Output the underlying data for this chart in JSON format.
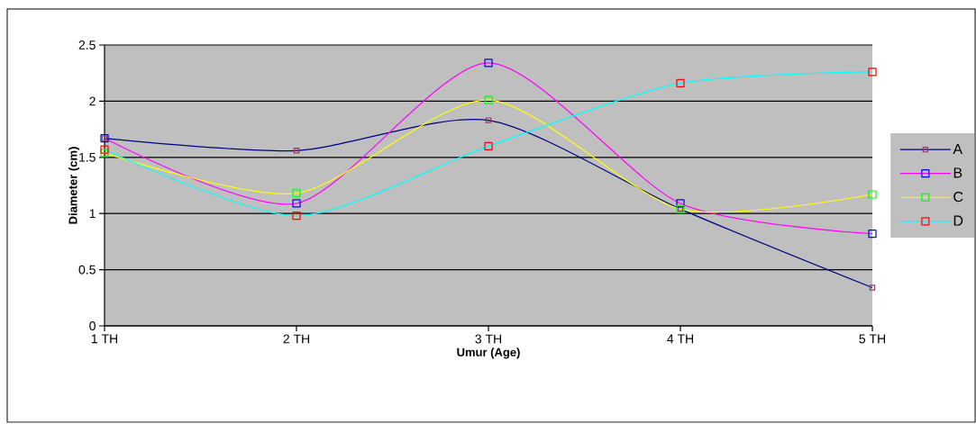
{
  "chart_data": {
    "type": "line",
    "xlabel": "Umur (Age)",
    "ylabel": "Diameter (cm)",
    "categories": [
      "1 TH",
      "2 TH",
      "3 TH",
      "4 TH",
      "5 TH"
    ],
    "series": [
      {
        "name": "A",
        "color": "#000080",
        "values": [
          1.67,
          1.56,
          1.83,
          1.04,
          0.34
        ]
      },
      {
        "name": "B",
        "color": "#ff00ff",
        "values": [
          1.67,
          1.09,
          2.34,
          1.09,
          0.82
        ]
      },
      {
        "name": "C",
        "color": "#ffff00",
        "values": [
          1.54,
          1.18,
          2.01,
          1.04,
          1.17
        ]
      },
      {
        "name": "D",
        "color": "#00ffff",
        "values": [
          1.57,
          0.98,
          1.6,
          2.16,
          2.26
        ]
      }
    ],
    "ylim": [
      0,
      2.5
    ],
    "yticks": [
      0,
      0.5,
      1,
      1.5,
      2,
      2.5
    ],
    "grid": "y",
    "legend": "right",
    "marker": "square"
  }
}
